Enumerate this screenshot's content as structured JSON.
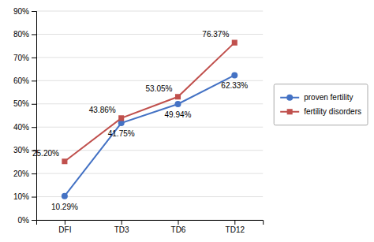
{
  "chart_data": {
    "type": "line",
    "categories": [
      "DFI",
      "TD3",
      "TD6",
      "TD12"
    ],
    "series": [
      {
        "name": "proven fertility",
        "color": "#4472C4",
        "marker": "circle",
        "values": [
          10.29,
          41.75,
          49.94,
          62.33
        ],
        "value_labels": [
          "10.29%",
          "41.75%",
          "49.94%",
          "62.33%"
        ]
      },
      {
        "name": "fertility disorders",
        "color": "#C0504D",
        "marker": "square",
        "values": [
          25.2,
          43.86,
          53.05,
          76.37
        ],
        "value_labels": [
          "25.20%",
          "43.86%",
          "53.05%",
          "76.37%"
        ]
      }
    ],
    "ylim": [
      0,
      90
    ],
    "yticks": [
      {
        "value": 0,
        "label": "0%"
      },
      {
        "value": 10,
        "label": "10%"
      },
      {
        "value": 20,
        "label": "20%"
      },
      {
        "value": 30,
        "label": "30%"
      },
      {
        "value": 40,
        "label": "40%"
      },
      {
        "value": 50,
        "label": "50%"
      },
      {
        "value": 60,
        "label": "60%"
      },
      {
        "value": 70,
        "label": "70%"
      },
      {
        "value": 80,
        "label": "80%"
      },
      {
        "value": 90,
        "label": "90%"
      }
    ],
    "grid": true,
    "legend": "right",
    "data_labels": true
  }
}
